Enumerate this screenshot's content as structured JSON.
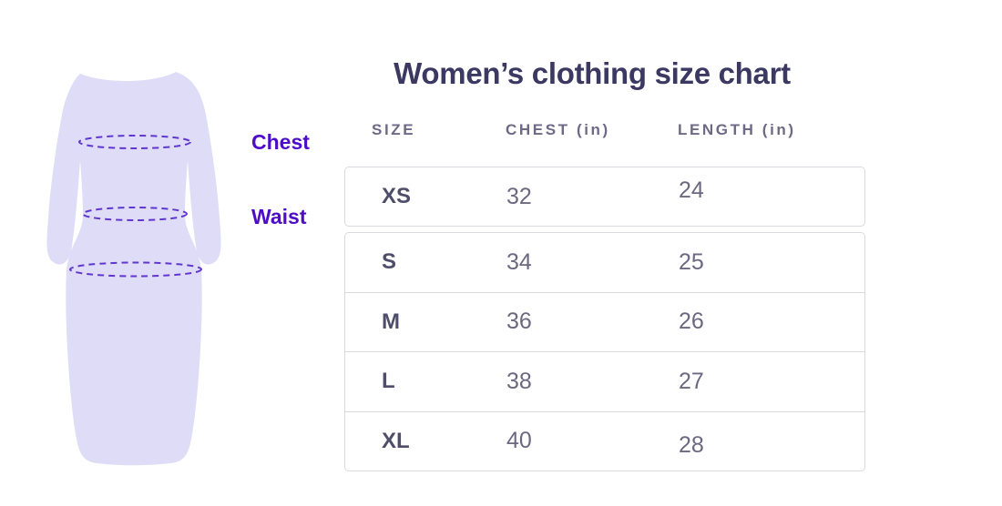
{
  "title": "Women’s clothing size chart",
  "figure": {
    "chest_label": "Chest",
    "waist_label": "Waist"
  },
  "size_table": {
    "columns": [
      "SIZE",
      "CHEST (in)",
      "LENGTH (in)"
    ],
    "rows": [
      {
        "size": "XS",
        "chest": "32",
        "length": "24"
      },
      {
        "size": "S",
        "chest": "34",
        "length": "25"
      },
      {
        "size": "M",
        "chest": "36",
        "length": "26"
      },
      {
        "size": "L",
        "chest": "38",
        "length": "27"
      },
      {
        "size": "XL",
        "chest": "40",
        "length": "28"
      }
    ]
  },
  "colors": {
    "accent_purple": "#4d0dc6",
    "dress_fill": "#dedcf6",
    "dash_stroke": "#6036d1",
    "title_text": "#3b3962",
    "header_text": "#6e6a86",
    "size_text": "#504d6a",
    "value_text": "#6b6880",
    "table_border": "#d9d9df",
    "page_bg": "#ffffff"
  },
  "chart_data": {
    "type": "table",
    "title": "Women’s clothing size chart",
    "columns": [
      "SIZE",
      "CHEST (in)",
      "LENGTH (in)"
    ],
    "categories": [
      "XS",
      "S",
      "M",
      "L",
      "XL"
    ],
    "series": [
      {
        "name": "CHEST (in)",
        "values": [
          32,
          34,
          36,
          38,
          40
        ]
      },
      {
        "name": "LENGTH (in)",
        "values": [
          24,
          25,
          26,
          27,
          28
        ]
      }
    ],
    "annotations": [
      "Chest",
      "Waist"
    ],
    "layout": {
      "legend": "none",
      "grid": "row-separators"
    }
  }
}
